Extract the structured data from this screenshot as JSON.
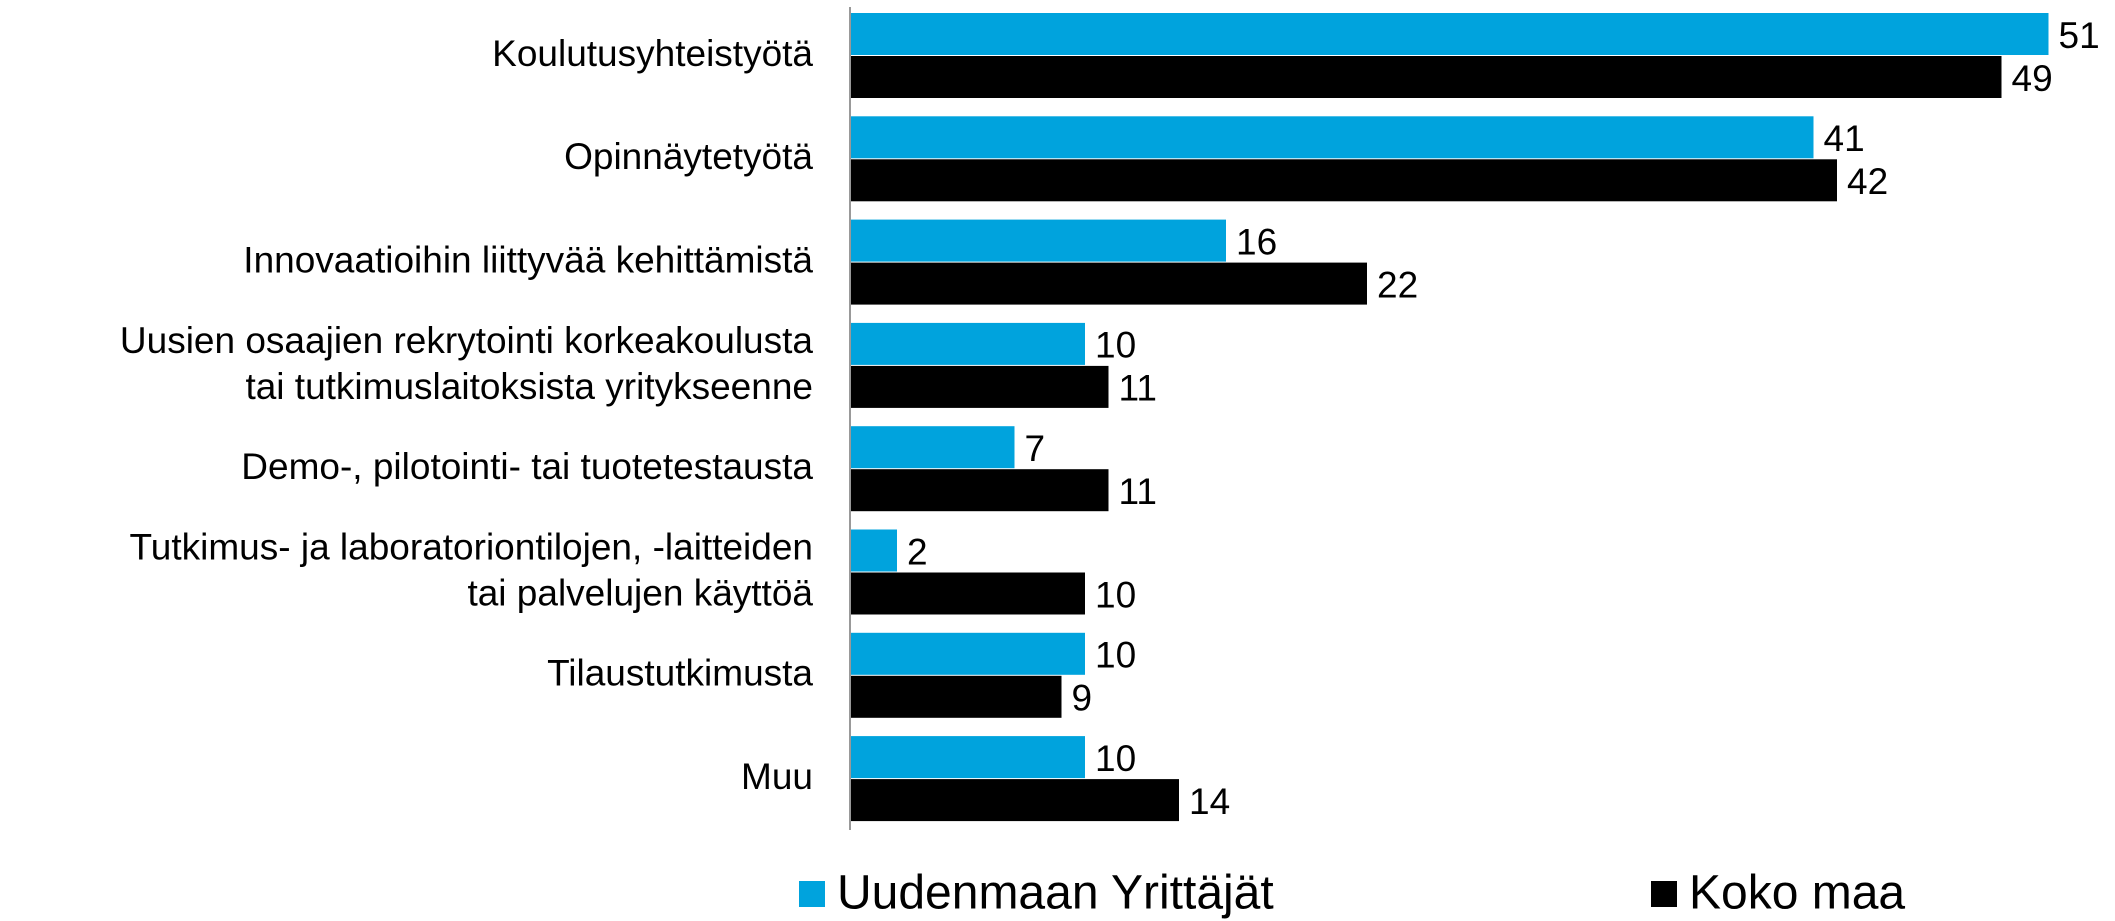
{
  "chart_data": {
    "type": "bar",
    "orientation": "horizontal",
    "categories": [
      "Koulutusyhteistyötä",
      "Opinnäytetyötä",
      "Innovaatioihin liittyvää kehittämistä",
      "Uusien osaajien rekrytointi korkeakoulusta\ntai tutkimuslaitoksista yritykseenne",
      "Demo-, pilotointi- tai tuotetestausta",
      "Tutkimus- ja laboratoriontilojen, -laitteiden\ntai palvelujen käyttöä",
      "Tilaustutkimusta",
      "Muu"
    ],
    "series": [
      {
        "name": "Uudenmaan Yrittäjät",
        "color": "#00a3dd",
        "values": [
          51,
          41,
          16,
          10,
          7,
          2,
          10,
          10
        ]
      },
      {
        "name": "Koko maa",
        "color": "#000000",
        "values": [
          49,
          42,
          22,
          11,
          11,
          10,
          9,
          14
        ]
      }
    ],
    "legend": "bottom"
  }
}
